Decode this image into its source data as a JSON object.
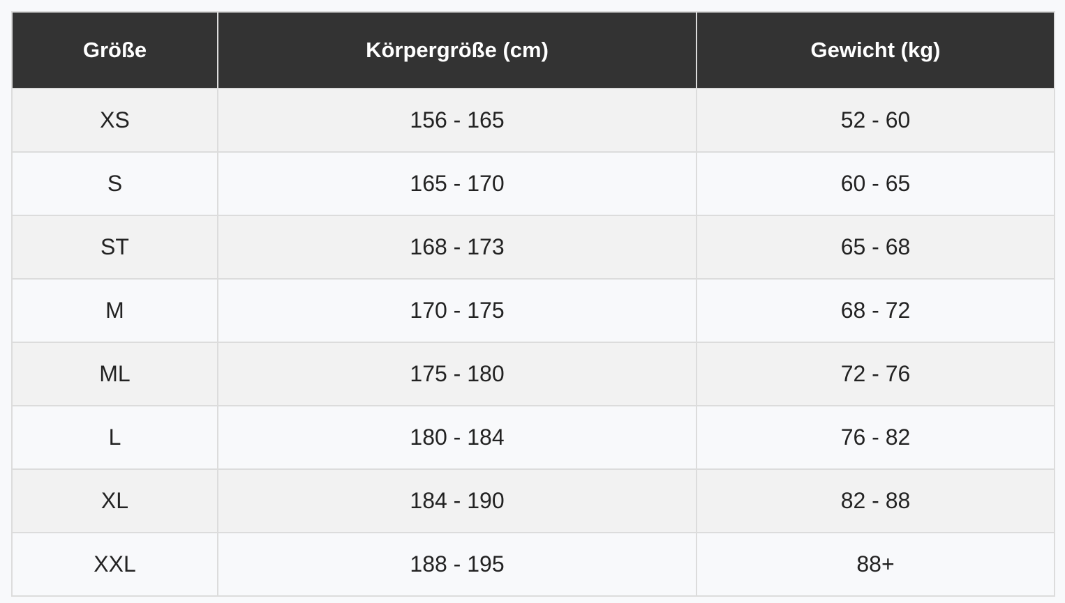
{
  "table": {
    "headers": [
      "Größe",
      "Körpergröße (cm)",
      "Gewicht (kg)"
    ],
    "rows": [
      [
        "XS",
        "156 - 165",
        "52 - 60"
      ],
      [
        "S",
        "165 - 170",
        "60 - 65"
      ],
      [
        "ST",
        "168 - 173",
        "65 - 68"
      ],
      [
        "M",
        "170 - 175",
        "68 - 72"
      ],
      [
        "ML",
        "175 - 180",
        "72 - 76"
      ],
      [
        "L",
        "180 - 184",
        "76 - 82"
      ],
      [
        "XL",
        "184 - 190",
        "82 - 88"
      ],
      [
        "XXL",
        "188 - 195",
        "88+"
      ]
    ]
  }
}
